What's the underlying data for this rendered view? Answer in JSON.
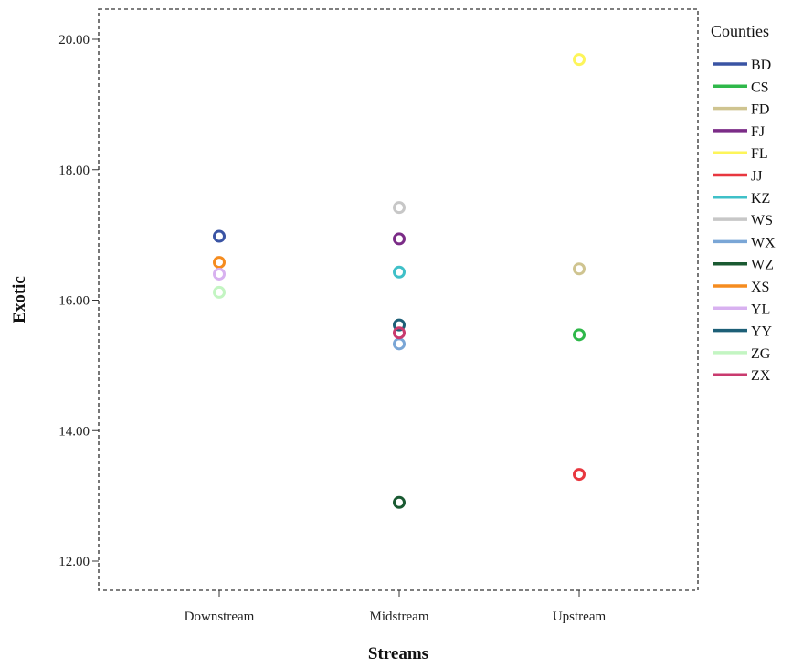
{
  "chart_data": {
    "type": "scatter",
    "xlabel": "Streams",
    "ylabel": "Exotic",
    "categories": [
      "Downstream",
      "Midstream",
      "Upstream"
    ],
    "ylim": [
      11.6,
      20.5
    ],
    "yticks": [
      "12.00",
      "14.00",
      "16.00",
      "18.00",
      "20.00"
    ],
    "ytick_values": [
      12,
      14,
      16,
      18,
      20
    ],
    "grid": false,
    "legend_position": "right",
    "legend_title": "Counties",
    "series": [
      {
        "name": "BD",
        "color": "#3a54a4",
        "points": [
          [
            "Downstream",
            16.98
          ]
        ]
      },
      {
        "name": "CS",
        "color": "#2fb84a",
        "points": [
          [
            "Upstream",
            15.47
          ]
        ]
      },
      {
        "name": "FD",
        "color": "#cfc490",
        "points": [
          [
            "Upstream",
            16.48
          ]
        ]
      },
      {
        "name": "FJ",
        "color": "#7b2c87",
        "points": [
          [
            "Midstream",
            16.94
          ]
        ]
      },
      {
        "name": "FL",
        "color": "#fdf55a",
        "points": [
          [
            "Upstream",
            19.69
          ]
        ]
      },
      {
        "name": "JJ",
        "color": "#e8373f",
        "points": [
          [
            "Upstream",
            13.33
          ]
        ]
      },
      {
        "name": "KZ",
        "color": "#3fc0c8",
        "points": [
          [
            "Midstream",
            16.43
          ]
        ]
      },
      {
        "name": "WS",
        "color": "#c7c7c7",
        "points": [
          [
            "Midstream",
            17.42
          ]
        ]
      },
      {
        "name": "WX",
        "color": "#7aa6d6",
        "points": [
          [
            "Midstream",
            15.33
          ]
        ]
      },
      {
        "name": "WZ",
        "color": "#1a5a32",
        "points": [
          [
            "Midstream",
            12.9
          ]
        ]
      },
      {
        "name": "XS",
        "color": "#f58c1f",
        "points": [
          [
            "Downstream",
            16.58
          ]
        ]
      },
      {
        "name": "YL",
        "color": "#d8b1f0",
        "points": [
          [
            "Downstream",
            16.4
          ]
        ]
      },
      {
        "name": "YY",
        "color": "#1d5f77",
        "points": [
          [
            "Midstream",
            15.62
          ]
        ]
      },
      {
        "name": "ZG",
        "color": "#c3f5c2",
        "points": [
          [
            "Downstream",
            16.12
          ]
        ]
      },
      {
        "name": "ZX",
        "color": "#c93a6e",
        "points": [
          [
            "Midstream",
            15.5
          ]
        ]
      }
    ]
  }
}
